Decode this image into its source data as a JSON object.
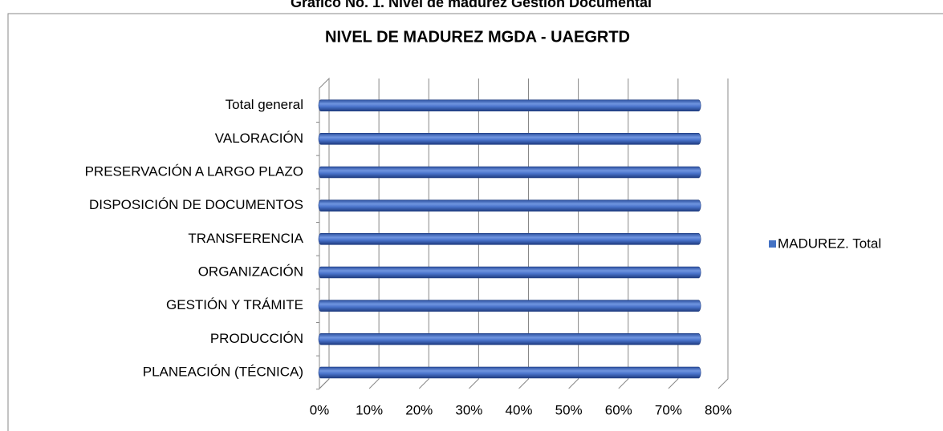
{
  "caption": "Gráfico No. 1. Nivel de madurez Gestión Documental",
  "chart_data": {
    "type": "bar",
    "orientation": "horizontal",
    "title": "NIVEL DE MADUREZ MGDA - UAEGRTD",
    "categories": [
      "PLANEACIÓN (TÉCNICA)",
      "PRODUCCIÓN",
      "GESTIÓN Y TRÁMITE",
      "ORGANIZACIÓN",
      "TRANSFERENCIA",
      "DISPOSICIÓN DE DOCUMENTOS",
      "PRESERVACIÓN A LARGO PLAZO",
      "VALORACIÓN",
      "Total general"
    ],
    "series": [
      {
        "name": "MADUREZ. Total",
        "color": "#4472c4",
        "values": [
          76,
          76,
          76,
          76,
          76,
          76,
          76,
          76,
          76
        ]
      }
    ],
    "xlim": [
      0,
      80
    ],
    "xticks": [
      {
        "value": 0,
        "label": "0%"
      },
      {
        "value": 10,
        "label": "10%"
      },
      {
        "value": 20,
        "label": "20%"
      },
      {
        "value": 30,
        "label": "30%"
      },
      {
        "value": 40,
        "label": "40%"
      },
      {
        "value": 50,
        "label": "50%"
      },
      {
        "value": 60,
        "label": "60%"
      },
      {
        "value": 70,
        "label": "70%"
      },
      {
        "value": 80,
        "label": "80%"
      }
    ],
    "grid": true,
    "legend": "right"
  }
}
